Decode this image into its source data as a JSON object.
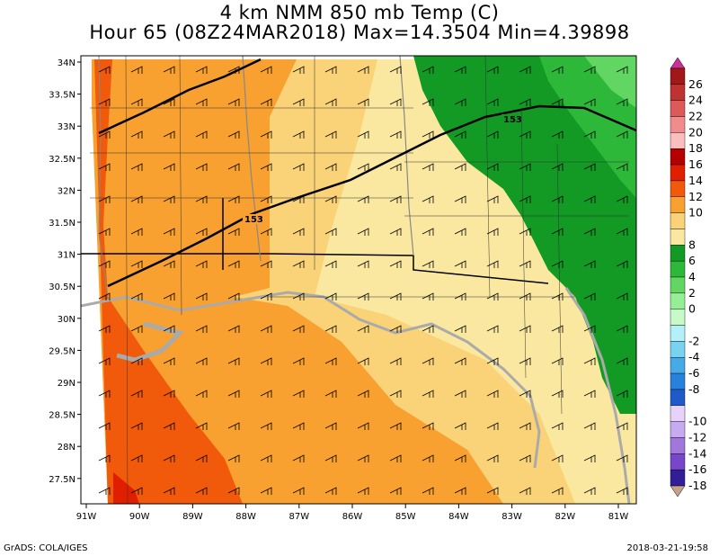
{
  "title_line1": "4 km NMM 850 mb Temp (C)",
  "title_line2": "Hour 65 (08Z24MAR2018) Max=14.3504 Min=4.39898",
  "credit": "GrADS: COLA/IGES",
  "timestamp": "2018-03-21-19:58",
  "map": {
    "lat_labels": [
      "34N",
      "33.5N",
      "33N",
      "32.5N",
      "32N",
      "31.5N",
      "31N",
      "30.5N",
      "30N",
      "29.5N",
      "29N",
      "28.5N",
      "28N",
      "27.5N"
    ],
    "lon_labels": [
      "91W",
      "90W",
      "89W",
      "88W",
      "87W",
      "86W",
      "85W",
      "84W",
      "83W",
      "82W",
      "81W"
    ],
    "contour_labels": [
      "153",
      "153",
      "153"
    ],
    "colors": {
      "ocean_orange": "#f8a030",
      "land_pale": "#fae8a0",
      "green_dark": "#139a24",
      "green_light": "#62d662"
    }
  },
  "colorbar": {
    "entries": [
      {
        "label": "26",
        "color": "#a01818"
      },
      {
        "label": "24",
        "color": "#be3232"
      },
      {
        "label": "22",
        "color": "#dc5a5a"
      },
      {
        "label": "20",
        "color": "#f08c8c"
      },
      {
        "label": "18",
        "color": "#fabebe"
      },
      {
        "label": "16",
        "color": "#b40000"
      },
      {
        "label": "14",
        "color": "#e01e00"
      },
      {
        "label": "12",
        "color": "#f05a0a"
      },
      {
        "label": "10",
        "color": "#f8a030"
      },
      {
        "label": "",
        "color": "#fad278"
      },
      {
        "label": "8",
        "color": "#fae8a0"
      },
      {
        "label": "6",
        "color": "#139a24"
      },
      {
        "label": "4",
        "color": "#2eb83a"
      },
      {
        "label": "2",
        "color": "#62d662"
      },
      {
        "label": "0",
        "color": "#96ee96"
      },
      {
        "label": "",
        "color": "#c8fac8"
      },
      {
        "label": "-2",
        "color": "#b4f0fa"
      },
      {
        "label": "-4",
        "color": "#78d2f0"
      },
      {
        "label": "-6",
        "color": "#46aae6"
      },
      {
        "label": "-8",
        "color": "#2882dc"
      },
      {
        "label": "",
        "color": "#1e5ac8"
      },
      {
        "label": "-10",
        "color": "#e6d2fa"
      },
      {
        "label": "-12",
        "color": "#c8aaf0"
      },
      {
        "label": "-14",
        "color": "#a078dc"
      },
      {
        "label": "-16",
        "color": "#7846c8"
      },
      {
        "label": "-18",
        "color": "#321e96"
      }
    ],
    "top_arrow_color": "#c83296",
    "bottom_arrow_color": "#c8a08c"
  }
}
